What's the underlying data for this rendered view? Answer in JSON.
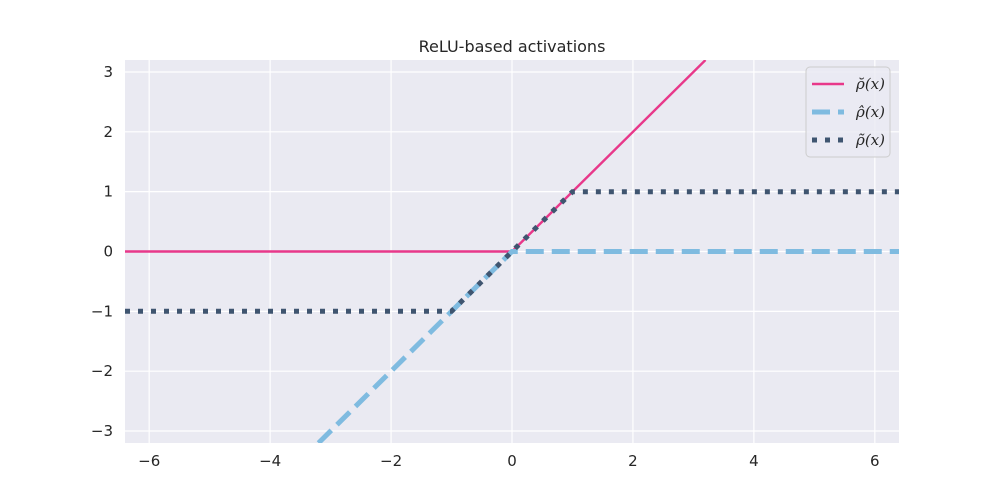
{
  "chart_data": {
    "type": "line",
    "title": "ReLU-based activations",
    "xlabel": "",
    "ylabel": "",
    "xlim": [
      -6.4,
      6.4
    ],
    "ylim": [
      -3.2,
      3.2
    ],
    "grid": true,
    "legend_position": "top-right",
    "xticks": [
      -6,
      -4,
      -2,
      0,
      2,
      4,
      6
    ],
    "yticks": [
      -3,
      -2,
      -1,
      0,
      1,
      2,
      3
    ],
    "xtick_labels": [
      "−6",
      "−4",
      "−2",
      "0",
      "2",
      "4",
      "6"
    ],
    "ytick_labels": [
      "−3",
      "−2",
      "−1",
      "0",
      "1",
      "2",
      "3"
    ],
    "series": [
      {
        "name": "ρ̆(x)",
        "color": "#e8388a",
        "style": "solid",
        "points": [
          [
            -6.4,
            0
          ],
          [
            0,
            0
          ],
          [
            3.2,
            3.2
          ]
        ]
      },
      {
        "name": "ρ̂(x)",
        "color": "#7fbbe0",
        "style": "dashed",
        "points": [
          [
            -3.2,
            -3.2
          ],
          [
            0,
            0
          ],
          [
            6.4,
            0
          ]
        ]
      },
      {
        "name": "ρ̃(x)",
        "color": "#3f5570",
        "style": "dotted",
        "points": [
          [
            -6.4,
            -1
          ],
          [
            -1,
            -1
          ],
          [
            1,
            1
          ],
          [
            6.4,
            1
          ]
        ]
      }
    ]
  }
}
